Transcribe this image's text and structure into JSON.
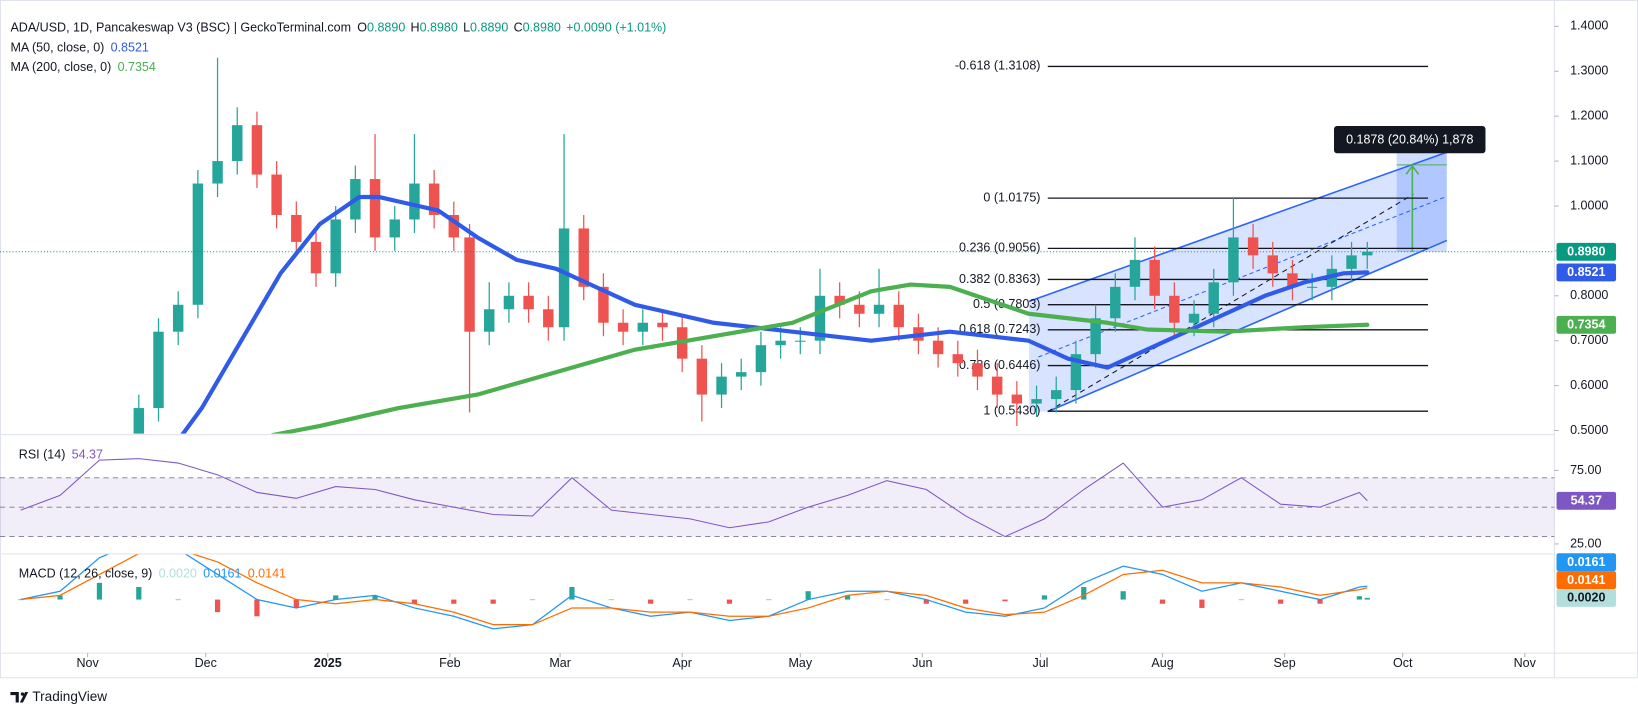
{
  "chart_data": {
    "type": "candlestick",
    "header": {
      "symbol": "ADA/USD, 1D, Pancakeswap V3 (BSC) | GeckoTerminal.com",
      "o": "O",
      "open": "0.8890",
      "h": "H",
      "high": "0.8980",
      "l": "L",
      "low": "0.8890",
      "c": "C",
      "close": "0.8980",
      "change": "+0.0090 (+1.01%)"
    },
    "colors": {
      "up": "#26a69a",
      "down": "#ef5350",
      "header_value": "#089981",
      "fib": "#131722",
      "last_price": "#089981"
    },
    "x": [
      34,
      39,
      44,
      49,
      54,
      59,
      64,
      69,
      74,
      79,
      84,
      89,
      94,
      99,
      104,
      109,
      114,
      119,
      124,
      128,
      133,
      138,
      143,
      148,
      152,
      157,
      162,
      167,
      172,
      177,
      182,
      187,
      192,
      197,
      202,
      207,
      212,
      217,
      222,
      227,
      232,
      237,
      242,
      247,
      252,
      257,
      262,
      267,
      272,
      277,
      282,
      287,
      292,
      297,
      302,
      307,
      312,
      317,
      322,
      327,
      332,
      337,
      342,
      347,
      352,
      356
    ],
    "open": [
      0.3,
      0.34,
      0.4,
      0.55,
      0.72,
      0.78,
      1.05,
      1.1,
      1.18,
      1.07,
      0.98,
      0.92,
      0.85,
      0.97,
      1.06,
      0.93,
      0.97,
      1.05,
      0.98,
      0.93,
      0.72,
      0.77,
      0.8,
      0.77,
      0.73,
      0.95,
      0.82,
      0.74,
      0.72,
      0.74,
      0.73,
      0.66,
      0.58,
      0.62,
      0.63,
      0.69,
      0.7,
      0.7,
      0.8,
      0.78,
      0.76,
      0.78,
      0.73,
      0.7,
      0.67,
      0.65,
      0.62,
      0.58,
      0.56,
      0.57,
      0.59,
      0.67,
      0.75,
      0.82,
      0.88,
      0.8,
      0.74,
      0.76,
      0.83,
      0.93,
      0.89,
      0.85,
      0.82,
      0.82,
      0.86,
      0.89
    ],
    "high": [
      0.37,
      0.43,
      0.58,
      0.75,
      0.81,
      1.08,
      1.33,
      1.22,
      1.21,
      1.1,
      1.01,
      0.95,
      1.0,
      1.09,
      1.16,
      1.0,
      1.16,
      1.08,
      1.01,
      0.96,
      0.83,
      0.83,
      0.83,
      0.8,
      1.16,
      0.98,
      0.85,
      0.77,
      0.77,
      0.77,
      0.76,
      0.69,
      0.65,
      0.66,
      0.72,
      0.73,
      0.73,
      0.86,
      0.83,
      0.81,
      0.86,
      0.81,
      0.76,
      0.73,
      0.7,
      0.68,
      0.65,
      0.61,
      0.6,
      0.62,
      0.7,
      0.78,
      0.85,
      0.93,
      0.91,
      0.83,
      0.79,
      0.86,
      1.02,
      0.96,
      0.92,
      0.88,
      0.85,
      0.89,
      0.92,
      0.92
    ],
    "low": [
      0.27,
      0.31,
      0.37,
      0.52,
      0.69,
      0.75,
      1.02,
      1.07,
      1.04,
      0.95,
      0.89,
      0.82,
      0.82,
      0.94,
      0.9,
      0.9,
      0.94,
      0.95,
      0.9,
      0.54,
      0.69,
      0.74,
      0.74,
      0.7,
      0.7,
      0.79,
      0.71,
      0.69,
      0.69,
      0.7,
      0.63,
      0.52,
      0.55,
      0.59,
      0.6,
      0.66,
      0.67,
      0.67,
      0.75,
      0.73,
      0.73,
      0.7,
      0.67,
      0.64,
      0.62,
      0.59,
      0.55,
      0.51,
      0.53,
      0.54,
      0.56,
      0.64,
      0.72,
      0.79,
      0.77,
      0.71,
      0.71,
      0.73,
      0.8,
      0.86,
      0.82,
      0.79,
      0.79,
      0.79,
      0.83,
      0.86
    ],
    "close": [
      0.34,
      0.4,
      0.55,
      0.72,
      0.78,
      1.05,
      1.1,
      1.18,
      1.07,
      0.98,
      0.92,
      0.85,
      0.97,
      1.06,
      0.93,
      0.97,
      1.05,
      0.98,
      0.93,
      0.72,
      0.77,
      0.8,
      0.77,
      0.73,
      0.95,
      0.82,
      0.74,
      0.72,
      0.74,
      0.73,
      0.66,
      0.58,
      0.62,
      0.63,
      0.69,
      0.7,
      0.7,
      0.8,
      0.78,
      0.76,
      0.78,
      0.73,
      0.7,
      0.67,
      0.65,
      0.62,
      0.58,
      0.56,
      0.57,
      0.59,
      0.67,
      0.75,
      0.82,
      0.88,
      0.8,
      0.74,
      0.76,
      0.83,
      0.93,
      0.89,
      0.85,
      0.82,
      0.82,
      0.86,
      0.89,
      0.898
    ],
    "xlim": [
      11,
      403
    ],
    "xticks": [
      {
        "value": 31,
        "label": "Nov"
      },
      {
        "value": 61,
        "label": "Dec"
      },
      {
        "value": 92,
        "label": "2025"
      },
      {
        "value": 123,
        "label": "Feb"
      },
      {
        "value": 151,
        "label": "Mar"
      },
      {
        "value": 182,
        "label": "Apr"
      },
      {
        "value": 212,
        "label": "May"
      },
      {
        "value": 243,
        "label": "Jun"
      },
      {
        "value": 273,
        "label": "Jul"
      },
      {
        "value": 304,
        "label": "Aug"
      },
      {
        "value": 335,
        "label": "Sep"
      },
      {
        "value": 365,
        "label": "Oct"
      },
      {
        "value": 396,
        "label": "Nov"
      }
    ],
    "ylim": [
      0.493,
      1.44
    ],
    "yticks": [
      {
        "value": 0.5,
        "label": "0.5000"
      },
      {
        "value": 0.6,
        "label": "0.6000"
      },
      {
        "value": 0.7,
        "label": "0.7000"
      },
      {
        "value": 0.8,
        "label": "0.8000"
      },
      {
        "value": 0.9,
        "label": "0.9000"
      },
      {
        "value": 1.0,
        "label": "1.0000"
      },
      {
        "value": 1.1,
        "label": "1.1000"
      },
      {
        "value": 1.2,
        "label": "1.2000"
      },
      {
        "value": 1.3,
        "label": "1.3000"
      },
      {
        "value": 1.4,
        "label": "1.4000"
      }
    ],
    "grid": false,
    "last_price": {
      "value": 0.898,
      "label": "0.8980"
    },
    "ma": [
      {
        "name": "MA (50, close, 0)",
        "color": "#2f5be8",
        "last": {
          "value": 0.8521,
          "label": "0.8521"
        },
        "x": [
          55,
          60,
          70,
          80,
          90,
          100,
          105,
          110,
          120,
          130,
          140,
          150,
          160,
          170,
          180,
          190,
          200,
          210,
          220,
          230,
          240,
          250,
          260,
          270,
          280,
          290,
          300,
          310,
          320,
          330,
          340,
          350,
          356
        ],
        "values": [
          0.49,
          0.55,
          0.7,
          0.85,
          0.96,
          1.02,
          1.02,
          1.01,
          0.99,
          0.93,
          0.88,
          0.86,
          0.82,
          0.78,
          0.76,
          0.74,
          0.73,
          0.72,
          0.71,
          0.7,
          0.71,
          0.72,
          0.71,
          0.7,
          0.66,
          0.64,
          0.68,
          0.72,
          0.76,
          0.8,
          0.83,
          0.85,
          0.8521
        ]
      },
      {
        "name": "MA (200, close, 0)",
        "color": "#4caf50",
        "last": {
          "value": 0.7354,
          "label": "0.7354"
        },
        "x": [
          78,
          90,
          110,
          130,
          150,
          170,
          190,
          210,
          230,
          240,
          250,
          260,
          270,
          280,
          290,
          300,
          320,
          340,
          356
        ],
        "values": [
          0.49,
          0.51,
          0.55,
          0.58,
          0.63,
          0.68,
          0.71,
          0.74,
          0.81,
          0.825,
          0.82,
          0.79,
          0.76,
          0.75,
          0.74,
          0.725,
          0.72,
          0.73,
          0.7354
        ]
      }
    ],
    "fib": [
      {
        "label": "-0.618 (1.3108)",
        "value": 1.3108
      },
      {
        "label": "0 (1.0175)",
        "value": 1.0175
      },
      {
        "label": "0.236 (0.9056)",
        "value": 0.9056
      },
      {
        "label": "0.382 (0.8363)",
        "value": 0.8363
      },
      {
        "label": "0.5 (0.7803)",
        "value": 0.7803
      },
      {
        "label": "0.618 (0.7243)",
        "value": 0.7243
      },
      {
        "label": "0.786 (0.6446)",
        "value": 0.6446
      },
      {
        "label": "1 (0.5430)",
        "value": 0.543
      }
    ],
    "measure_label": "0.1878 (20.84%) 1,878",
    "rsi": {
      "name": "RSI (14)",
      "color": "#7e57c2",
      "last": {
        "value": 54.37,
        "label": "54.37"
      },
      "ylim": [
        18.6,
        98.6
      ],
      "yticks": [
        {
          "value": 75,
          "label": "75.00"
        },
        {
          "value": 25,
          "label": "25.00"
        }
      ],
      "bands": [
        70,
        50,
        30
      ],
      "x": [
        14,
        24,
        34,
        44,
        54,
        64,
        74,
        84,
        94,
        104,
        114,
        124,
        134,
        144,
        154,
        164,
        174,
        184,
        194,
        204,
        214,
        224,
        234,
        244,
        254,
        264,
        274,
        284,
        294,
        304,
        314,
        324,
        334,
        344,
        354,
        356
      ],
      "values": [
        48,
        58,
        82,
        83,
        80,
        72,
        60,
        56,
        64,
        62,
        55,
        50,
        45,
        44,
        70,
        48,
        45,
        42,
        36,
        40,
        50,
        58,
        68,
        62,
        44,
        30,
        42,
        62,
        80,
        50,
        55,
        70,
        52,
        50,
        60,
        54.37
      ]
    },
    "macd": {
      "name": "MACD (12, 26, close, 9)",
      "ylim": [
        -0.064,
        0.054
      ],
      "x": [
        14,
        24,
        34,
        44,
        54,
        64,
        74,
        84,
        94,
        104,
        114,
        124,
        134,
        144,
        154,
        164,
        174,
        184,
        194,
        204,
        214,
        224,
        234,
        244,
        254,
        264,
        274,
        284,
        294,
        304,
        314,
        324,
        334,
        344,
        354,
        356
      ],
      "histogram": {
        "color_up": "#26a69a",
        "color_down": "#ef5350",
        "tag_color": "#b2dfdb",
        "last": {
          "value": 0.002,
          "label": "0.0020"
        },
        "values": [
          0.0,
          0.005,
          0.02,
          0.015,
          0.0,
          -0.015,
          -0.02,
          -0.01,
          0.005,
          0.005,
          -0.005,
          -0.005,
          -0.005,
          0.0,
          0.015,
          0.0,
          -0.005,
          0.0,
          -0.005,
          0.0,
          0.01,
          0.005,
          0.0,
          -0.005,
          -0.005,
          -0.002,
          0.005,
          0.015,
          0.01,
          -0.005,
          -0.01,
          0.0,
          -0.005,
          -0.005,
          0.004,
          0.002
        ]
      },
      "macd_line": {
        "color": "#2196f3",
        "last": {
          "value": 0.0161,
          "label": "0.0161"
        },
        "values": [
          0.0,
          0.01,
          0.05,
          0.07,
          0.06,
          0.03,
          0.0,
          -0.01,
          0.0,
          0.005,
          -0.01,
          -0.02,
          -0.035,
          -0.03,
          0.005,
          -0.01,
          -0.02,
          -0.015,
          -0.025,
          -0.02,
          0.0,
          0.01,
          0.01,
          0.0,
          -0.015,
          -0.02,
          -0.01,
          0.02,
          0.04,
          0.03,
          0.01,
          0.02,
          0.01,
          0.0,
          0.015,
          0.0161
        ]
      },
      "signal_line": {
        "color": "#ff6d00",
        "last": {
          "value": 0.0141,
          "label": "0.0141"
        },
        "values": [
          0.0,
          0.005,
          0.03,
          0.055,
          0.06,
          0.045,
          0.02,
          0.0,
          -0.005,
          0.0,
          -0.005,
          -0.015,
          -0.03,
          -0.03,
          -0.01,
          -0.01,
          -0.015,
          -0.015,
          -0.02,
          -0.02,
          -0.01,
          0.005,
          0.01,
          0.005,
          -0.01,
          -0.018,
          -0.015,
          0.005,
          0.03,
          0.035,
          0.02,
          0.02,
          0.015,
          0.005,
          0.012,
          0.0141
        ]
      }
    },
    "brand": "TradingView"
  }
}
